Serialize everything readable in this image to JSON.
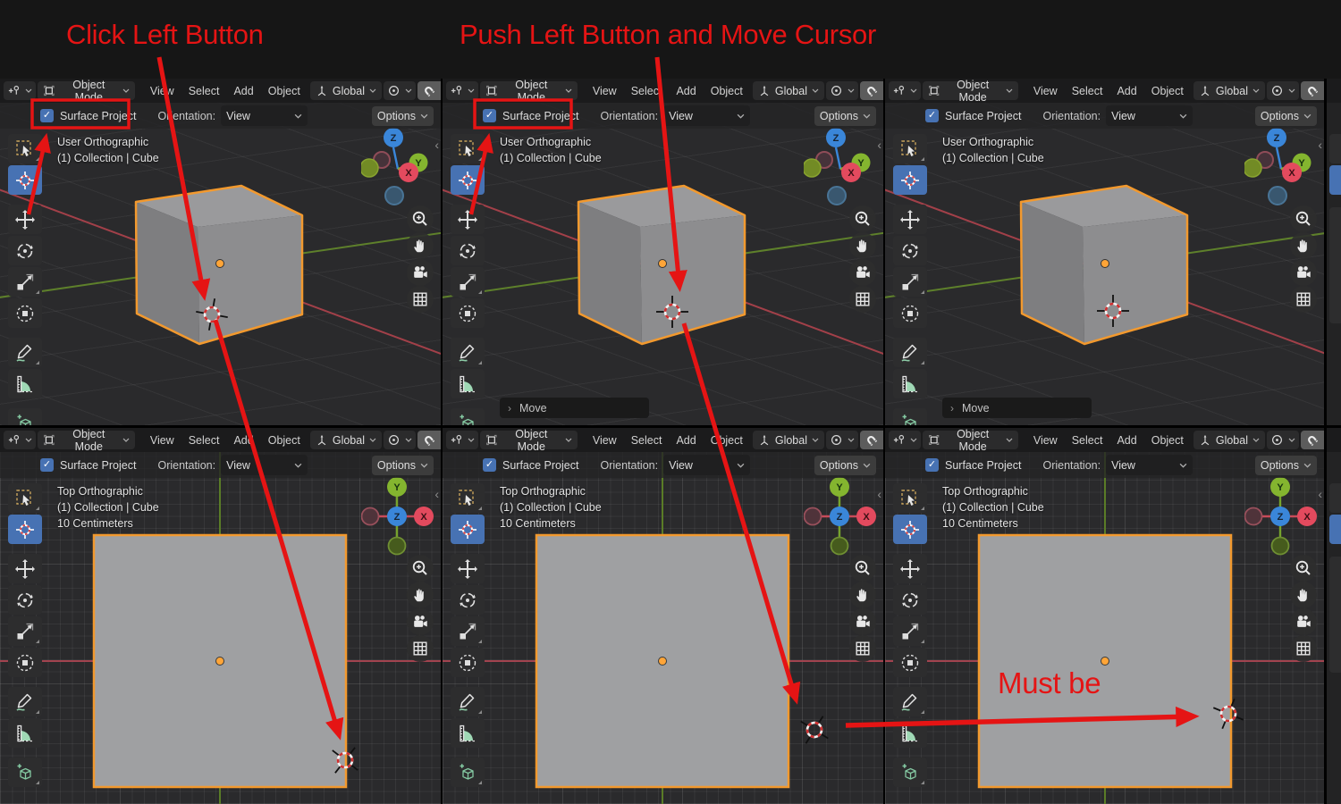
{
  "annotations": {
    "click_left_button": "Click Left Button",
    "push_left_button": "Push Left Button and Move Cursor",
    "must_be": "Must be",
    "arrow_color": "#e51414"
  },
  "menubar": {
    "mode": "Object Mode",
    "menus": [
      "View",
      "Select",
      "Add",
      "Object"
    ],
    "transform_orientation": "Global"
  },
  "tool_settings": {
    "surface_project_label": "Surface Project",
    "surface_project_checked": true,
    "checkbox_glyph": "✓",
    "orientation_label": "Orientation:",
    "orientation_value": "View",
    "options_label": "Options"
  },
  "viewport_persp": {
    "line1": "User Orthographic",
    "line2": "(1) Collection | Cube"
  },
  "viewport_ortho": {
    "line1": "Top Orthographic",
    "line2": "(1) Collection | Cube",
    "line3": "10 Centimeters"
  },
  "operator_panel": {
    "label": "Move"
  },
  "gizmo": {
    "x": "X",
    "y": "Y",
    "z": "Z"
  },
  "ui": {
    "collapse": "‹",
    "panel_expand": "›"
  },
  "icons": [
    "editor-type-icon",
    "object-mode-icon",
    "proportional-editing-icon",
    "snap-magnet-icon",
    "select-box-tool-icon",
    "cursor-tool-icon",
    "move-tool-icon",
    "rotate-tool-icon",
    "scale-tool-icon",
    "transform-tool-icon",
    "annotate-tool-icon",
    "measure-tool-icon",
    "add-cube-tool-icon",
    "zoom-icon",
    "pan-hand-icon",
    "camera-view-icon",
    "grid-ortho-icon",
    "3d-cursor-icon",
    "nav-gizmo-icon"
  ],
  "colors": {
    "selection_outline": "#f2992e",
    "active_tool_blue": "#4772b3",
    "checkbox_blue": "#4772b3",
    "axis_x_red": "#a2434f",
    "axis_y_green": "#5a7c27",
    "gizmo_x": "#e34a5e",
    "gizmo_y": "#84b52f",
    "gizmo_z": "#3a86d9",
    "object_gray": "#9fa0a2",
    "header_bg": "#1b1b1c",
    "viewport_bg": "#2a2a2c"
  }
}
